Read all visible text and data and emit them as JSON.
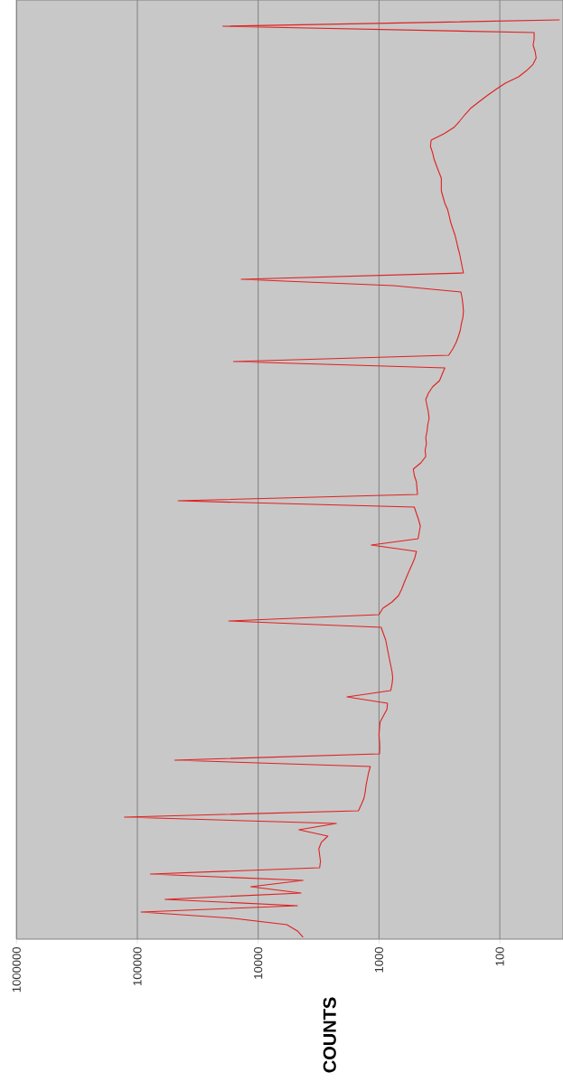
{
  "chart_data": {
    "type": "line",
    "orientation": "horizontal",
    "ylabel": "COUNTS",
    "log": "x",
    "grid": "x",
    "tick_labels": "x",
    "xlim": [
      1000000,
      30
    ],
    "xticks": [
      1000000,
      100000,
      10000,
      1000,
      100
    ],
    "categories": [
      null,
      null,
      null,
      null,
      null,
      null,
      null,
      null,
      null,
      null,
      null,
      null,
      null,
      null,
      null,
      null,
      null,
      null,
      null,
      null,
      null,
      null,
      null,
      null,
      null,
      null,
      null,
      null,
      null,
      null,
      null,
      null,
      null,
      null,
      null,
      null,
      null,
      null,
      null,
      null,
      null,
      null,
      null,
      null,
      null,
      null,
      null,
      null,
      null,
      null,
      null,
      null,
      null,
      null,
      null,
      null,
      null,
      null,
      null,
      null,
      null,
      null,
      null,
      null,
      null,
      null,
      null,
      null,
      null,
      null,
      null,
      null,
      null,
      null,
      null,
      null,
      null,
      null,
      null,
      null,
      null,
      null,
      null,
      null,
      null,
      null,
      null,
      null,
      null,
      null,
      null,
      null,
      null,
      null,
      null,
      null,
      null,
      null,
      null,
      null,
      null,
      null,
      null,
      null,
      null,
      null,
      null,
      null,
      null,
      null,
      null,
      null,
      null,
      null,
      null,
      null,
      null,
      null,
      null,
      null,
      null,
      null,
      null,
      null,
      null,
      null,
      null,
      null,
      null,
      null,
      null,
      null,
      null,
      null,
      null,
      null,
      null,
      null,
      null,
      null,
      null,
      null,
      null,
      null,
      null,
      null,
      null,
      null,
      null
    ],
    "series": [
      {
        "color": "#e02020",
        "values": [
          null,
          null,
          null,
          32,
          19600,
          52,
          52,
          53,
          51,
          50,
          53,
          60,
          70,
          90,
          108,
          128,
          150,
          175,
          195,
          215,
          240,
          290,
          370,
          375,
          360,
          350,
          335,
          320,
          305,
          305,
          305,
          295,
          285,
          270,
          262,
          255,
          245,
          235,
          228,
          222,
          215,
          210,
          205,
          200,
          13800,
          760,
          210,
          205,
          202,
          200,
          202,
          208,
          212,
          220,
          230,
          245,
          265,
          16000,
          285,
          300,
          315,
          360,
          390,
          410,
          400,
          390,
          385,
          395,
          400,
          410,
          405,
          415,
          410,
          450,
          520,
          510,
          490,
          485,
          480,
          46000,
          510,
          490,
          470,
          455,
          465,
          475,
          1160,
          490,
          505,
          530,
          560,
          590,
          620,
          650,
          690,
          780,
          930,
          1000,
          17500,
          960,
          920,
          880,
          860,
          840,
          820,
          800,
          780,
          770,
          780,
          800,
          1840,
          850,
          860,
          920,
          980,
          990,
          1000,
          990,
          985,
          990,
          49000,
          1180,
          1220,
          1250,
          1280,
          1300,
          1330,
          1400,
          1480,
          128000,
          2250,
          4600,
          2650,
          3000,
          3150,
          3100,
          3050,
          3100,
          78000,
          4250,
          11500,
          4420,
          59000,
          4730,
          93000,
          16000,
          5790,
          4730,
          4250
        ]
      }
    ]
  }
}
